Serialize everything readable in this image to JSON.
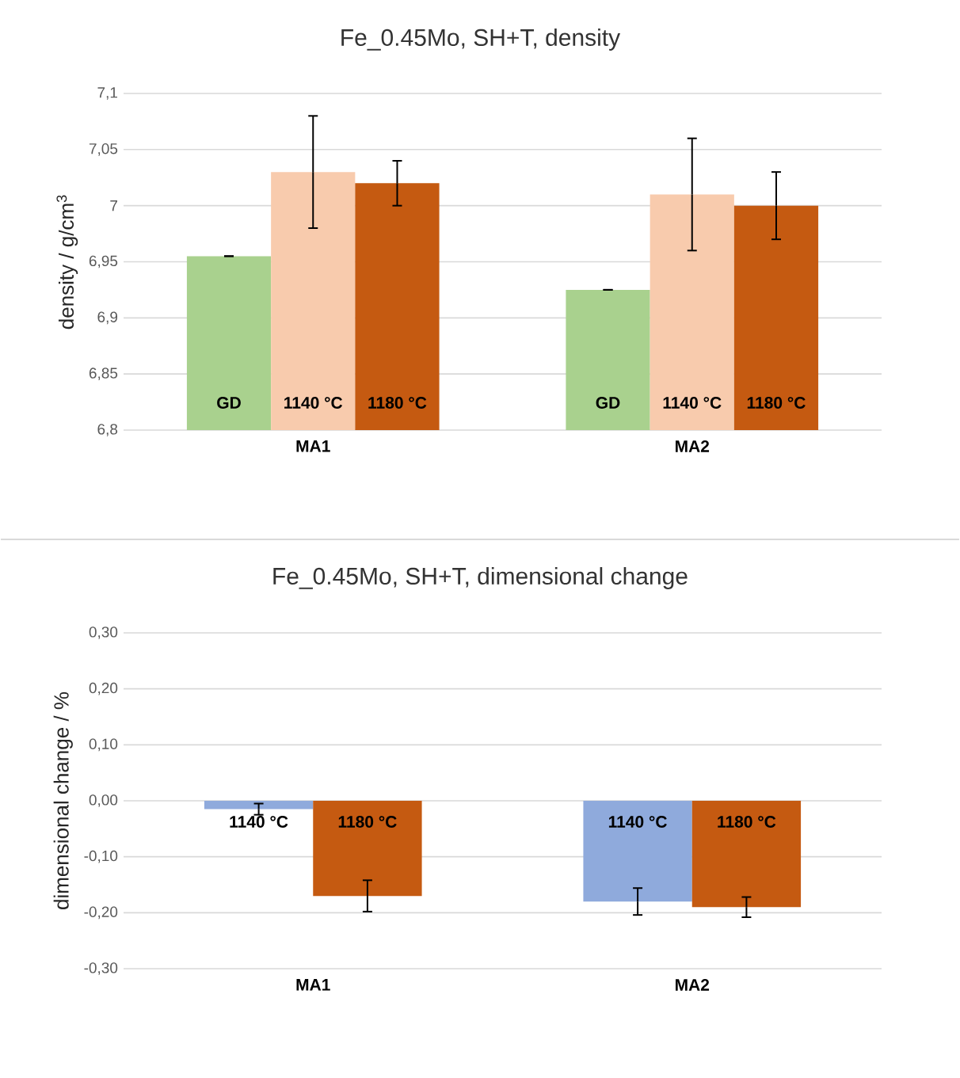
{
  "chart_data": [
    {
      "type": "bar",
      "title": "Fe_0.45Mo, SH+T, density",
      "ylabel": "density / g/cm$^{3}$",
      "categories": [
        "MA1",
        "MA2"
      ],
      "series": [
        {
          "name": "GD",
          "color": "#a9d18e",
          "values": [
            6.955,
            6.925
          ],
          "errors": [
            0,
            0
          ]
        },
        {
          "name": "1140 °C",
          "color": "#f8cbad",
          "values": [
            7.03,
            7.01
          ],
          "errors": [
            0.05,
            0.05
          ]
        },
        {
          "name": "1180 °C",
          "color": "#c55a11",
          "values": [
            7.02,
            7.0
          ],
          "errors": [
            0.02,
            0.03
          ]
        }
      ],
      "ylim": [
        6.8,
        7.1
      ],
      "yticks": [
        {
          "value": 6.8,
          "label": "6,8"
        },
        {
          "value": 6.85,
          "label": "6,85"
        },
        {
          "value": 6.9,
          "label": "6,9"
        },
        {
          "value": 6.95,
          "label": "6,95"
        },
        {
          "value": 7.0,
          "label": "7"
        },
        {
          "value": 7.05,
          "label": "7,05"
        },
        {
          "value": 7.1,
          "label": "7,1"
        }
      ],
      "grid": "y"
    },
    {
      "type": "bar",
      "title": "Fe_0.45Mo, SH+T, dimensional change",
      "ylabel": "dimensional change / %",
      "categories": [
        "MA1",
        "MA2"
      ],
      "series": [
        {
          "name": "1140 °C",
          "color": "#8faadc",
          "values": [
            -0.015,
            -0.18
          ],
          "errors": [
            0.01,
            0.024
          ]
        },
        {
          "name": "1180 °C",
          "color": "#c55a11",
          "values": [
            -0.17,
            -0.19
          ],
          "errors": [
            0.028,
            0.018
          ]
        }
      ],
      "ylim": [
        -0.3,
        0.3
      ],
      "yticks": [
        {
          "value": -0.3,
          "label": "-0,30"
        },
        {
          "value": -0.2,
          "label": "-0,20"
        },
        {
          "value": -0.1,
          "label": "-0,10"
        },
        {
          "value": 0.0,
          "label": "0,00"
        },
        {
          "value": 0.1,
          "label": "0,10"
        },
        {
          "value": 0.2,
          "label": "0,20"
        },
        {
          "value": 0.3,
          "label": "0,30"
        }
      ],
      "grid": "y"
    }
  ]
}
